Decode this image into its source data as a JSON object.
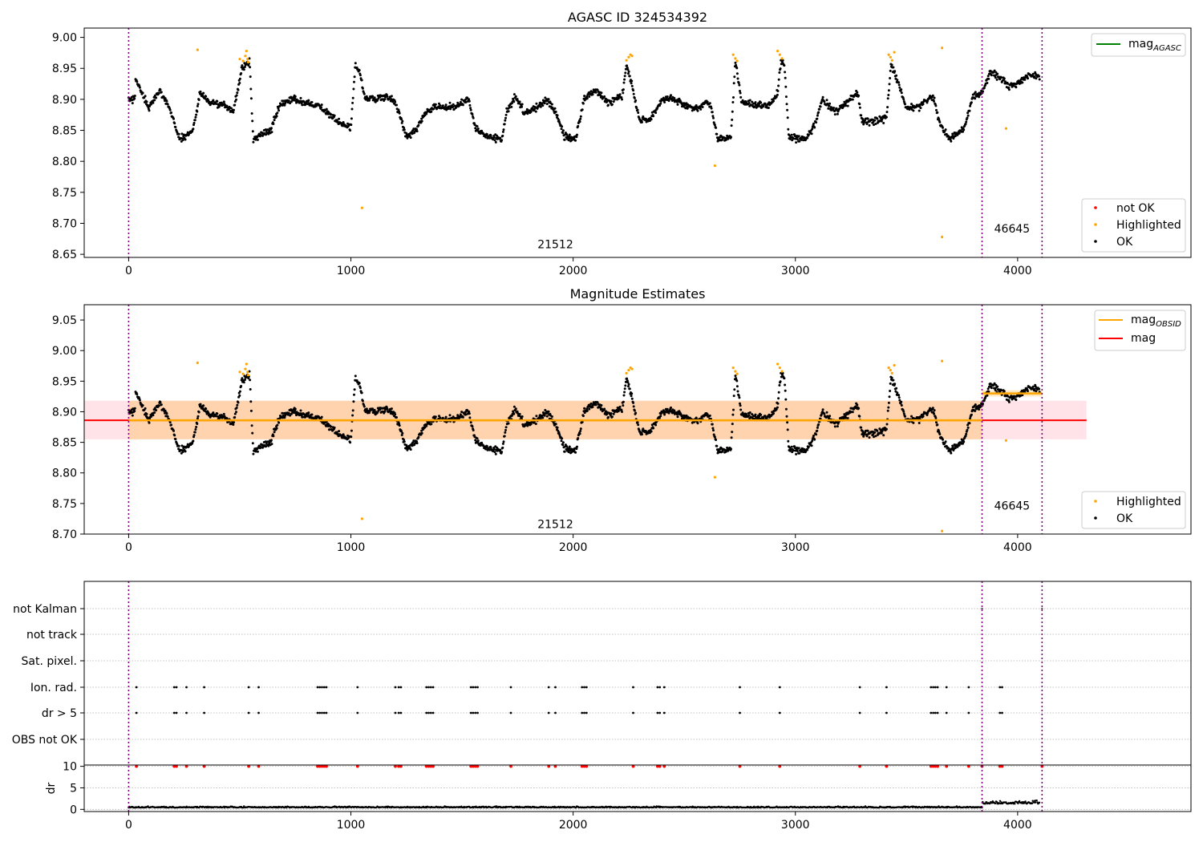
{
  "chart_data": [
    {
      "type": "scatter",
      "title": "AGASC ID 324534392",
      "xlim": [
        -200,
        4780
      ],
      "ylim": [
        8.645,
        9.015
      ],
      "xticks": [
        0,
        1000,
        2000,
        3000,
        4000
      ],
      "yticks": [
        8.65,
        8.7,
        8.75,
        8.8,
        8.85,
        8.9,
        8.95,
        9.0
      ],
      "ytick_labels": [
        "8.65",
        "8.70",
        "8.75",
        "8.80",
        "8.85",
        "8.90",
        "8.95",
        "9.00"
      ],
      "obs_boundaries": [
        0,
        3840,
        4110
      ],
      "obs_labels": [
        {
          "text": "21512",
          "x": 1920,
          "y": 8.66
        },
        {
          "text": "46645",
          "x": 3975,
          "y": 8.685
        }
      ],
      "legend_upper": [
        {
          "label": "mag",
          "sub": "AGASC",
          "color": "#008000"
        }
      ],
      "legend_lower": [
        {
          "label": "not OK",
          "color": "#ff0000"
        },
        {
          "label": "Highlighted",
          "color": "#ffa500"
        },
        {
          "label": "OK",
          "color": "#000000"
        }
      ],
      "highlighted_points": [
        [
          310,
          8.98
        ],
        [
          500,
          8.965
        ],
        [
          515,
          8.962
        ],
        [
          525,
          8.97
        ],
        [
          530,
          8.978
        ],
        [
          535,
          8.965
        ],
        [
          538,
          8.96
        ],
        [
          1050,
          8.725
        ],
        [
          2240,
          8.963
        ],
        [
          2250,
          8.968
        ],
        [
          2258,
          8.972
        ],
        [
          2265,
          8.97
        ],
        [
          2638,
          8.793
        ],
        [
          2720,
          8.972
        ],
        [
          2730,
          8.966
        ],
        [
          2738,
          8.962
        ],
        [
          2920,
          8.978
        ],
        [
          2930,
          8.972
        ],
        [
          2940,
          8.966
        ],
        [
          3420,
          8.972
        ],
        [
          3428,
          8.968
        ],
        [
          3435,
          8.963
        ],
        [
          3445,
          8.976
        ],
        [
          3660,
          8.983
        ],
        [
          3660,
          8.678
        ],
        [
          3948,
          8.853
        ]
      ],
      "not_ok_points": []
    },
    {
      "type": "scatter",
      "title": "Magnitude Estimates",
      "xlim": [
        -200,
        4780
      ],
      "ylim": [
        8.7,
        9.075
      ],
      "xticks": [
        0,
        1000,
        2000,
        3000,
        4000
      ],
      "yticks": [
        8.7,
        8.75,
        8.8,
        8.85,
        8.9,
        8.95,
        9.0,
        9.05
      ],
      "ytick_labels": [
        "8.70",
        "8.75",
        "8.80",
        "8.85",
        "8.90",
        "8.95",
        "9.00",
        "9.05"
      ],
      "obs_boundaries": [
        0,
        3840,
        4110
      ],
      "obs_labels": [
        {
          "text": "21512",
          "x": 1920,
          "y": 8.71
        },
        {
          "text": "46645",
          "x": 3975,
          "y": 8.74
        }
      ],
      "mag_line": {
        "value": 8.886,
        "x_range": [
          -200,
          4310
        ]
      },
      "mag_band": {
        "low": 8.855,
        "high": 8.918,
        "x_range": [
          -200,
          4310
        ]
      },
      "obsid_segments": [
        {
          "x_range": [
            0,
            3840
          ],
          "value": 8.886,
          "band": [
            8.855,
            8.918
          ]
        },
        {
          "x_range": [
            3840,
            4110
          ],
          "value": 8.93,
          "band": [
            8.925,
            8.935
          ]
        }
      ],
      "legend_upper": [
        {
          "label": "mag",
          "sub": "OBSID",
          "color": "#ffa500"
        },
        {
          "label": "mag",
          "sub": "",
          "color": "#ff0000"
        }
      ],
      "legend_lower": [
        {
          "label": "Highlighted",
          "color": "#ffa500"
        },
        {
          "label": "OK",
          "color": "#000000"
        }
      ],
      "highlighted_points": [
        [
          310,
          8.98
        ],
        [
          500,
          8.965
        ],
        [
          515,
          8.962
        ],
        [
          525,
          8.97
        ],
        [
          530,
          8.978
        ],
        [
          535,
          8.965
        ],
        [
          538,
          8.96
        ],
        [
          1050,
          8.725
        ],
        [
          2240,
          8.963
        ],
        [
          2250,
          8.968
        ],
        [
          2258,
          8.972
        ],
        [
          2265,
          8.97
        ],
        [
          2638,
          8.793
        ],
        [
          2720,
          8.972
        ],
        [
          2730,
          8.966
        ],
        [
          2738,
          8.962
        ],
        [
          2920,
          8.978
        ],
        [
          2930,
          8.972
        ],
        [
          2940,
          8.966
        ],
        [
          3420,
          8.972
        ],
        [
          3428,
          8.968
        ],
        [
          3435,
          8.963
        ],
        [
          3445,
          8.976
        ],
        [
          3660,
          8.983
        ],
        [
          3660,
          8.705
        ],
        [
          3948,
          8.853
        ]
      ]
    },
    {
      "type": "scatter",
      "title": "",
      "xlim": [
        -200,
        4780
      ],
      "xticks": [
        0,
        1000,
        2000,
        3000,
        4000
      ],
      "obs_boundaries": [
        0,
        3840,
        4110
      ],
      "flag_rows": [
        "not Kalman",
        "not track",
        "Sat. pixel.",
        "Ion. rad.",
        "dr > 5",
        "OBS not OK"
      ],
      "flag_events": [
        35,
        205,
        215,
        260,
        340,
        540,
        585,
        850,
        860,
        870,
        880,
        890,
        1030,
        1200,
        1215,
        1225,
        1340,
        1350,
        1360,
        1370,
        1540,
        1550,
        1560,
        1570,
        1720,
        1890,
        1920,
        2040,
        2050,
        2060,
        2270,
        2380,
        2390,
        2410,
        2750,
        2930,
        3290,
        3410,
        3610,
        3620,
        3630,
        3640,
        3680,
        3780,
        3920,
        3930
      ],
      "not_kalman_events": [
        3840,
        4110
      ],
      "dr": {
        "ylabel": "dr",
        "yticks": [
          0,
          5,
          10
        ],
        "ylim": [
          -0.5,
          10.3
        ],
        "threshold": 10,
        "baseline": 0.4,
        "late_baseline": 1.3
      }
    }
  ]
}
